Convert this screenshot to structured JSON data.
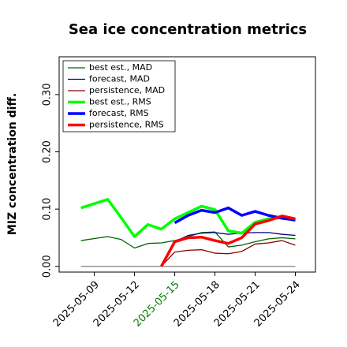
{
  "chart_data": {
    "type": "line",
    "title": "Sea ice concentration metrics",
    "y_label": "MIZ concentration diff.",
    "x": [
      "2025-05-08",
      "2025-05-10",
      "2025-05-11",
      "2025-05-12",
      "2025-05-13",
      "2025-05-14",
      "2025-05-15",
      "2025-05-16",
      "2025-05-17",
      "2025-05-18",
      "2025-05-19",
      "2025-05-20",
      "2025-05-21",
      "2025-05-22",
      "2025-05-23",
      "2025-05-24"
    ],
    "series": [
      {
        "name": "best est., MAD",
        "color": "#006400",
        "linewidth": 1.3,
        "values": [
          0.045,
          0.052,
          0.047,
          0.032,
          0.04,
          0.041,
          0.045,
          0.052,
          0.059,
          0.06,
          0.034,
          0.037,
          0.043,
          0.048,
          0.05,
          0.048
        ]
      },
      {
        "name": "forecast, MAD",
        "color": "#000080",
        "linewidth": 1.3,
        "values": [
          null,
          null,
          null,
          null,
          null,
          null,
          0.043,
          0.054,
          0.058,
          0.059,
          0.056,
          0.058,
          0.059,
          0.059,
          0.056,
          0.054
        ]
      },
      {
        "name": "persistence, MAD",
        "color": "#8b0000",
        "linewidth": 1.3,
        "values": [
          null,
          null,
          null,
          null,
          null,
          0.0,
          0.025,
          0.028,
          0.029,
          0.023,
          0.022,
          0.026,
          0.039,
          0.041,
          0.045,
          0.037
        ]
      },
      {
        "name": "best est., RMS",
        "color": "#00ff00",
        "linewidth": 3.5,
        "values": [
          0.102,
          0.117,
          0.085,
          0.052,
          0.073,
          0.065,
          0.083,
          0.094,
          0.105,
          0.099,
          0.062,
          0.058,
          0.077,
          0.083,
          0.085,
          0.08
        ]
      },
      {
        "name": "forecast, RMS",
        "color": "#0000ff",
        "linewidth": 3.5,
        "values": [
          null,
          null,
          null,
          null,
          null,
          null,
          0.076,
          0.089,
          0.098,
          0.094,
          0.102,
          0.089,
          0.096,
          0.089,
          0.084,
          0.081
        ]
      },
      {
        "name": "persistence, RMS",
        "color": "#ff0000",
        "linewidth": 3.5,
        "values": [
          null,
          null,
          null,
          null,
          null,
          0.0,
          0.043,
          0.05,
          0.051,
          0.045,
          0.04,
          0.05,
          0.074,
          0.08,
          0.088,
          0.083
        ]
      }
    ],
    "zero_line_color": "#808080",
    "xlim": [
      "2025-05-06T09:00",
      "2025-05-25T12:00"
    ],
    "xticks": [
      "2025-05-09",
      "2025-05-12",
      "2025-05-15",
      "2025-05-18",
      "2025-05-21",
      "2025-05-24"
    ],
    "xtick_label_colors": [
      "#000000",
      "#000000",
      "#008000",
      "#000000",
      "#000000",
      "#000000"
    ],
    "ylim": [
      -0.01,
      0.366
    ],
    "yticks": [
      {
        "value": 0,
        "label": "0.00"
      },
      {
        "value": 0.1,
        "label": "0.10"
      },
      {
        "value": 0.2,
        "label": "0.20"
      },
      {
        "value": 0.3,
        "label": "0.30"
      }
    ],
    "legend": "upper left"
  }
}
